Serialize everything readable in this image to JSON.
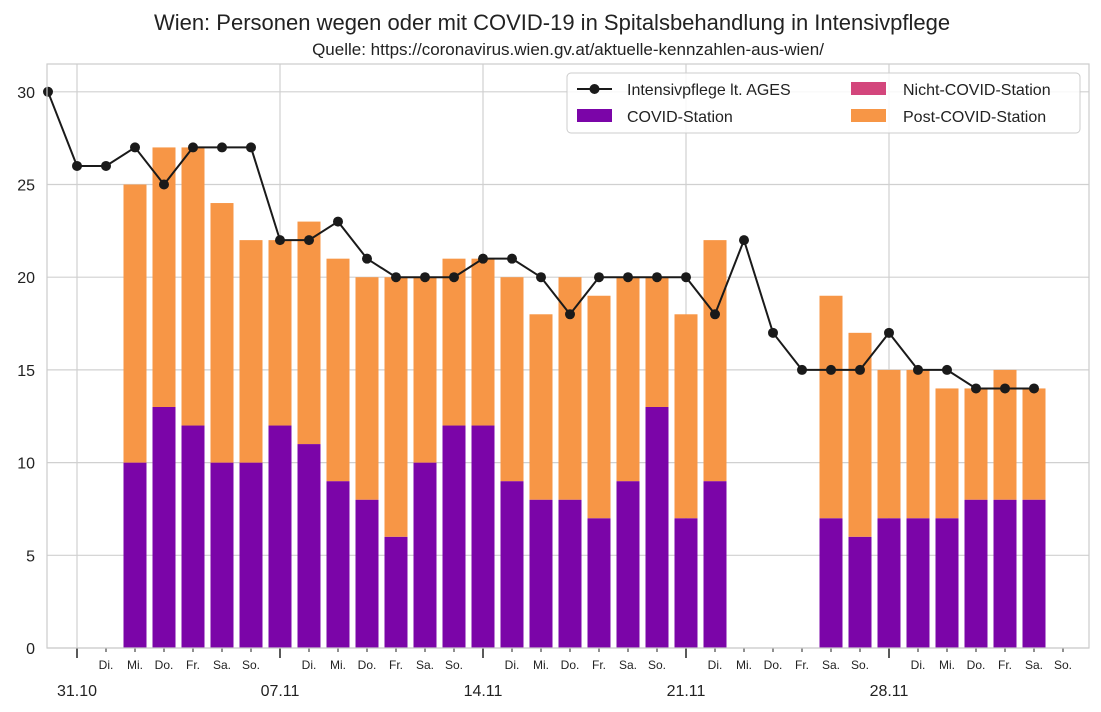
{
  "chart_data": {
    "type": "bar",
    "title": "Wien: Personen wegen oder mit COVID-19 in Spitalsbehandlung in Intensivpflege",
    "subtitle": "Quelle: https://coronavirus.wien.gv.at/aktuelle-kennzahlen-aus-wien/",
    "ylim": [
      0,
      31.5
    ],
    "yticks": [
      0,
      5,
      10,
      15,
      20,
      25,
      30
    ],
    "grid": true,
    "legend_position": "top-right",
    "x_dates": [
      "30.10",
      "31.10",
      "01.11",
      "02.11",
      "03.11",
      "04.11",
      "05.11",
      "06.11",
      "07.11",
      "08.11",
      "09.11",
      "10.11",
      "11.11",
      "12.11",
      "13.11",
      "14.11",
      "15.11",
      "16.11",
      "17.11",
      "18.11",
      "19.11",
      "20.11",
      "21.11",
      "22.11",
      "23.11",
      "24.11",
      "25.11",
      "26.11",
      "27.11",
      "28.11",
      "29.11",
      "30.11",
      "01.12",
      "02.12",
      "03.12",
      "04.12"
    ],
    "x_minor_labels": [
      "",
      "",
      "Di.",
      "Mi.",
      "Do.",
      "Fr.",
      "Sa.",
      "So.",
      "",
      "Di.",
      "Mi.",
      "Do.",
      "Fr.",
      "Sa.",
      "So.",
      "",
      "Di.",
      "Mi.",
      "Do.",
      "Fr.",
      "Sa.",
      "So.",
      "",
      "Di.",
      "Mi.",
      "Do.",
      "Fr.",
      "Sa.",
      "So.",
      "",
      "Di.",
      "Mi.",
      "Do.",
      "Fr.",
      "Sa.",
      "So."
    ],
    "x_major_labels": [
      {
        "date": "31.10",
        "label": "31.10"
      },
      {
        "date": "07.11",
        "label": "07.11"
      },
      {
        "date": "14.11",
        "label": "14.11"
      },
      {
        "date": "21.11",
        "label": "21.11"
      },
      {
        "date": "28.11",
        "label": "28.11"
      }
    ],
    "series": [
      {
        "name": "COVID-Station",
        "kind": "bar",
        "color": "#7b05a8",
        "values": [
          null,
          null,
          null,
          10,
          13,
          12,
          10,
          10,
          12,
          11,
          9,
          8,
          6,
          10,
          12,
          12,
          9,
          8,
          8,
          7,
          9,
          13,
          7,
          9,
          null,
          null,
          null,
          7,
          6,
          7,
          7,
          7,
          8,
          8,
          8,
          null
        ]
      },
      {
        "name": "Nicht-COVID-Station",
        "kind": "bar",
        "color": "#d3467c",
        "values": [
          null,
          null,
          null,
          0,
          0,
          0,
          0,
          0,
          0,
          0,
          0,
          0,
          0,
          0,
          0,
          0,
          0,
          0,
          0,
          0,
          0,
          0,
          0,
          0,
          null,
          null,
          null,
          0,
          0,
          0,
          0,
          0,
          0,
          0,
          0,
          null
        ]
      },
      {
        "name": "Post-COVID-Station",
        "kind": "bar",
        "color": "#f79646",
        "values": [
          null,
          null,
          null,
          15,
          14,
          15,
          14,
          12,
          10,
          12,
          12,
          12,
          14,
          10,
          9,
          9,
          11,
          10,
          12,
          12,
          11,
          7,
          11,
          13,
          null,
          null,
          null,
          12,
          11,
          8,
          8,
          7,
          6,
          7,
          6,
          null
        ]
      },
      {
        "name": "Intensivpflege lt. AGES",
        "kind": "line",
        "color": "#1a1a1a",
        "values": [
          30,
          26,
          26,
          27,
          25,
          27,
          27,
          27,
          22,
          22,
          23,
          21,
          20,
          20,
          20,
          21,
          21,
          20,
          18,
          20,
          20,
          20,
          20,
          18,
          22,
          17,
          15,
          15,
          15,
          17,
          15,
          15,
          14,
          14,
          14,
          null
        ]
      }
    ]
  }
}
